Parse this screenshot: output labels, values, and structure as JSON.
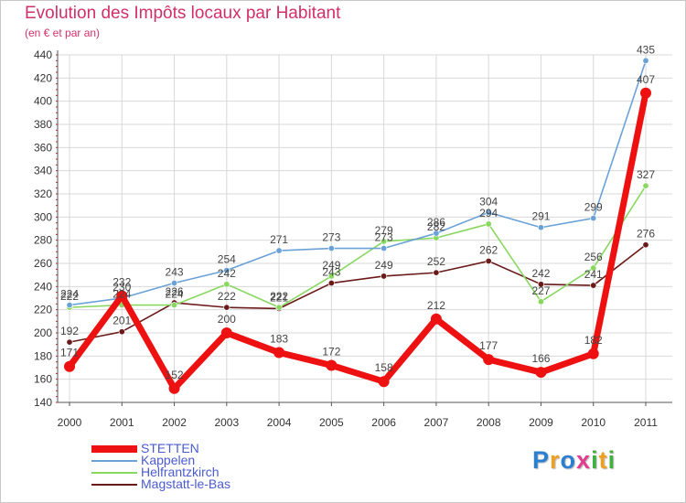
{
  "header": {
    "title": "Evolution des Impôts locaux par Habitant",
    "subtitle": "(en € et par an)"
  },
  "logo": {
    "text": "Proxiti",
    "letter_colors": [
      "#2a7fd0",
      "#f0a020",
      "#2a7fd0",
      "#e23c8c",
      "#40b040",
      "#f0a020",
      "#40b040"
    ]
  },
  "chart_data": {
    "type": "line",
    "title": "Evolution des Impôts locaux par Habitant",
    "subtitle": "(en € et par an)",
    "xlabel": "",
    "ylabel": "",
    "categories": [
      "2000",
      "2001",
      "2002",
      "2003",
      "2004",
      "2005",
      "2006",
      "2007",
      "2008",
      "2009",
      "2010",
      "2011"
    ],
    "ylim": [
      140,
      440
    ],
    "yticks": [
      140,
      160,
      180,
      200,
      220,
      240,
      260,
      280,
      300,
      320,
      340,
      360,
      380,
      400,
      420,
      440
    ],
    "grid": true,
    "legend_position": "bottom-left",
    "series": [
      {
        "name": "Magstatt-le-Bas",
        "color": "#6b1a1a",
        "values": [
          192,
          201,
          226,
          222,
          221,
          243,
          249,
          252,
          262,
          242,
          241,
          276
        ]
      },
      {
        "name": "Helfrantzkirch",
        "color": "#88d860",
        "values": [
          222,
          224,
          224,
          242,
          222,
          249,
          279,
          282,
          294,
          227,
          256,
          327
        ]
      },
      {
        "name": "Kappelen",
        "color": "#6aa2d8",
        "values": [
          224,
          230,
          243,
          254,
          271,
          273,
          273,
          286,
          304,
          291,
          299,
          435
        ]
      },
      {
        "name": "STETTEN",
        "color": "#ee1111",
        "values": [
          171,
          232,
          152,
          200,
          183,
          172,
          158,
          212,
          177,
          166,
          182,
          407
        ]
      }
    ]
  }
}
